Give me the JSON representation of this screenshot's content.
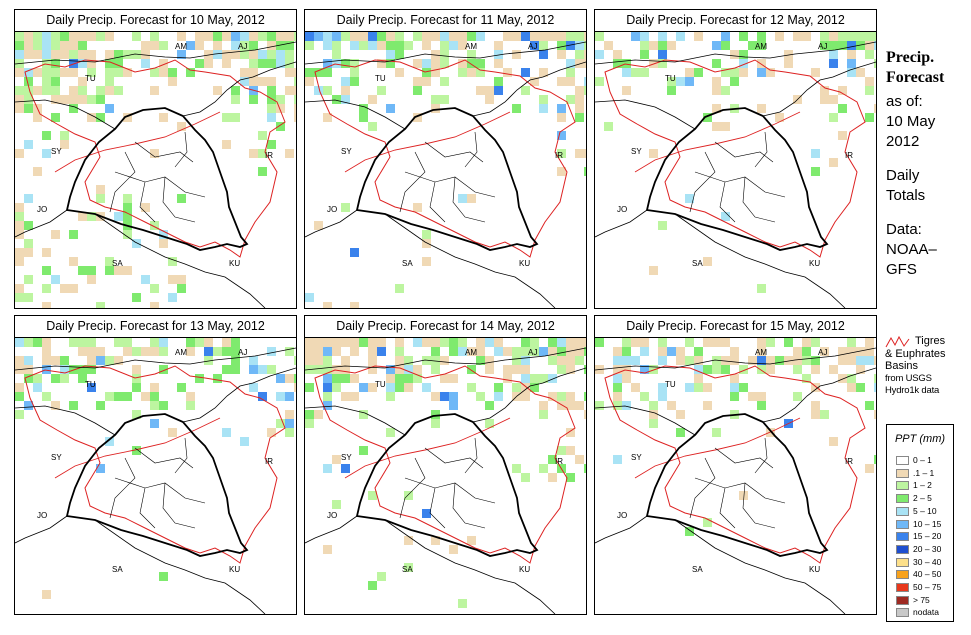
{
  "panels": [
    {
      "title": "Daily Precip. Forecast for  10 May, 2012"
    },
    {
      "title": "Daily Precip. Forecast for  11 May, 2012"
    },
    {
      "title": "Daily Precip. Forecast for  12 May, 2012"
    },
    {
      "title": "Daily Precip. Forecast for  13 May, 2012"
    },
    {
      "title": "Daily Precip. Forecast for  14 May, 2012"
    },
    {
      "title": "Daily Precip. Forecast for  15 May, 2012"
    }
  ],
  "map_labels": [
    "AM",
    "AJ",
    "TU",
    "SY",
    "IR",
    "JO",
    "SA",
    "KU"
  ],
  "sidebar": {
    "heading_line1": "Precip.",
    "heading_line2": "Forecast",
    "asof_label": "as of:",
    "date_line1": "10 May",
    "date_line2": "2012",
    "daily_line1": "Daily",
    "daily_line2": "Totals",
    "data_line1": "Data:",
    "data_line2": "NOAA–",
    "data_line3": "GFS"
  },
  "basin_note": {
    "line1": "Tigres",
    "line2": "& Euphrates",
    "line3": "Basins",
    "line4": "from USGS",
    "line5": "Hydro1k data"
  },
  "legend": {
    "title": "PPT (mm)",
    "items": [
      {
        "label": "0 – 1",
        "color": "#ffffff"
      },
      {
        "label": ".1 – 1",
        "color": "#f0d9b5"
      },
      {
        "label": "1 – 2",
        "color": "#bdf5a0"
      },
      {
        "label": "2 – 5",
        "color": "#7fea6e"
      },
      {
        "label": "5 – 10",
        "color": "#a9e3f5"
      },
      {
        "label": "10 – 15",
        "color": "#6fb8f7"
      },
      {
        "label": "15 – 20",
        "color": "#3a82ec"
      },
      {
        "label": "20 – 30",
        "color": "#1f4fd0"
      },
      {
        "label": "30 – 40",
        "color": "#fde08a"
      },
      {
        "label": "40 – 50",
        "color": "#f8a21c"
      },
      {
        "label": "50 – 75",
        "color": "#e8381c"
      },
      {
        "label": "> 75",
        "color": "#9e2a22"
      },
      {
        "label": "nodata",
        "color": "#c8c8c8"
      }
    ]
  },
  "colors": {
    "basin_outline": "#dd2222",
    "borders": "#000000"
  }
}
